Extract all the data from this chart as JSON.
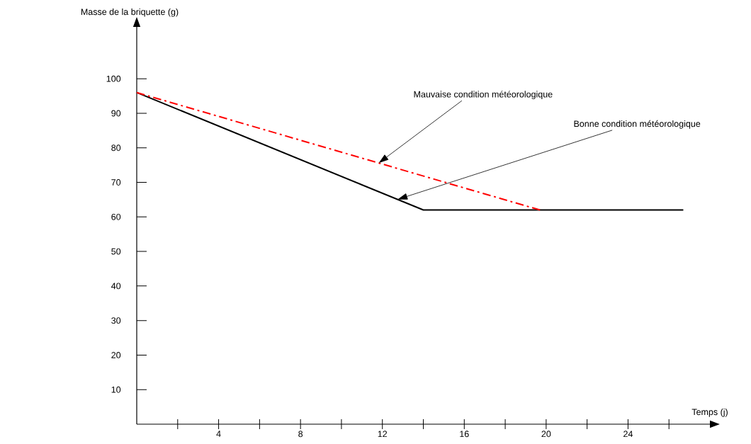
{
  "chart_data": {
    "type": "line",
    "xlabel": "Temps (j)",
    "ylabel": "Masse de la briquette (g)",
    "xlim": [
      0,
      28
    ],
    "ylim": [
      0,
      115
    ],
    "xticks": [
      {
        "value": 2,
        "label": null
      },
      4,
      {
        "value": 6,
        "label": null
      },
      8,
      {
        "value": 10,
        "label": null
      },
      12,
      {
        "value": 14,
        "label": null
      },
      16,
      {
        "value": 18,
        "label": null
      },
      20,
      {
        "value": 22,
        "label": null
      },
      24,
      {
        "value": 26,
        "label": null
      }
    ],
    "yticks": [
      10,
      20,
      30,
      40,
      50,
      60,
      70,
      80,
      90,
      100
    ],
    "series": [
      {
        "color": "#000000",
        "line_style": "solid",
        "x": [
          0,
          14,
          26.7
        ],
        "values": [
          96,
          62,
          62
        ]
      },
      {
        "color": "#ff0000",
        "line_style": "dashed",
        "x": [
          0,
          19.7
        ],
        "values": [
          96,
          62
        ]
      }
    ],
    "annotations": [
      "Mauvaise condition météorologique",
      "Bonne condition météorologique"
    ],
    "grid": false
  }
}
